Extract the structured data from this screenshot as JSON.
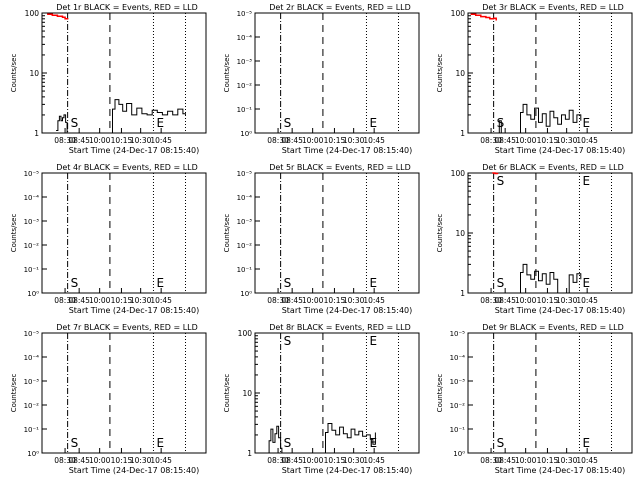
{
  "colors": {
    "events": "#000000",
    "lld": "#ff0000",
    "background": "#ffffff"
  },
  "shared": {
    "xlabel": "Start Time (24-Dec-17 08:15:40)",
    "xticks": [
      "08:30",
      "08:45",
      "10:00",
      "10:15",
      "10:30",
      "10:45"
    ],
    "marker_s": "S",
    "marker_e": "E",
    "ylabel": "Counts/sec"
  },
  "chart_data": [
    {
      "type": "line",
      "title": "Det 1r BLACK = Events, RED = LLD",
      "yscale": "log",
      "yticks": [
        "1",
        "10",
        "100"
      ],
      "series": [
        {
          "name": "Events",
          "points": [
            [
              0.55,
              1.1
            ],
            [
              0.62,
              1.6
            ],
            [
              0.68,
              1.9
            ],
            [
              0.74,
              1.6
            ],
            [
              0.8,
              1.8
            ],
            [
              0.86,
              2.0
            ],
            [
              0.92,
              1.5
            ],
            [
              0.98,
              1.0
            ],
            [
              1.0,
              1.0
            ],
            [
              2.7,
              1.0
            ],
            [
              2.75,
              2.5
            ],
            [
              2.85,
              3.6
            ],
            [
              3.0,
              3.0
            ],
            [
              3.15,
              2.3
            ],
            [
              3.3,
              3.1
            ],
            [
              3.5,
              2.0
            ],
            [
              3.7,
              2.6
            ],
            [
              3.9,
              2.1
            ],
            [
              4.1,
              2.0
            ],
            [
              4.3,
              2.4
            ],
            [
              4.5,
              2.2
            ],
            [
              4.7,
              2.0
            ],
            [
              4.9,
              2.3
            ],
            [
              5.1,
              2.0
            ],
            [
              5.3,
              2.5
            ],
            [
              5.5,
              2.1
            ],
            [
              5.6,
              2.0
            ]
          ]
        },
        {
          "name": "LLD",
          "points": [
            [
              0.2,
              95
            ],
            [
              0.4,
              92
            ],
            [
              0.6,
              88
            ],
            [
              0.8,
              85
            ],
            [
              0.9,
              80
            ],
            [
              1.0,
              78
            ]
          ]
        }
      ]
    },
    {
      "type": "line",
      "title": "Det 2r BLACK = Events, RED = LLD",
      "yscale": "log",
      "yticks": [
        "10⁰",
        "10⁻¹",
        "10⁻²",
        "10⁻³",
        "10⁻⁴",
        "10⁻⁵"
      ],
      "series": [
        {
          "name": "Events",
          "points": []
        }
      ]
    },
    {
      "type": "line",
      "title": "Det 3r BLACK = Events, RED = LLD",
      "yscale": "log",
      "yticks": [
        "1",
        "10",
        "100"
      ],
      "series": [
        {
          "name": "Events",
          "points": [
            [
              1.18,
              1.0
            ],
            [
              1.22,
              1.6
            ],
            [
              1.3,
              1.0
            ],
            [
              2.0,
              1.0
            ],
            [
              2.05,
              2.2
            ],
            [
              2.15,
              3.0
            ],
            [
              2.3,
              2.0
            ],
            [
              2.45,
              1.7
            ],
            [
              2.6,
              2.6
            ],
            [
              2.75,
              1.5
            ],
            [
              2.9,
              2.1
            ],
            [
              3.05,
              1.3
            ],
            [
              3.2,
              2.3
            ],
            [
              3.35,
              1.8
            ],
            [
              3.5,
              1.4
            ],
            [
              3.65,
              2.0
            ],
            [
              3.8,
              1.7
            ],
            [
              3.95,
              2.4
            ],
            [
              4.1,
              1.5
            ],
            [
              4.25,
              2.0
            ],
            [
              4.4,
              1.6
            ]
          ]
        },
        {
          "name": "LLD",
          "points": [
            [
              0.1,
              95
            ],
            [
              0.3,
              92
            ],
            [
              0.5,
              87
            ],
            [
              0.7,
              84
            ],
            [
              0.85,
              80
            ],
            [
              1.0,
              82
            ],
            [
              1.1,
              75
            ]
          ]
        }
      ]
    },
    {
      "type": "line",
      "title": "Det 4r BLACK = Events, RED = LLD",
      "yscale": "log",
      "yticks": [
        "10⁰",
        "10⁻¹",
        "10⁻²",
        "10⁻³",
        "10⁻⁴",
        "10⁻⁵"
      ],
      "series": [
        {
          "name": "Events",
          "points": []
        }
      ]
    },
    {
      "type": "line",
      "title": "Det 5r BLACK = Events, RED = LLD",
      "yscale": "log",
      "yticks": [
        "10⁰",
        "10⁻¹",
        "10⁻²",
        "10⁻³",
        "10⁻⁴",
        "10⁻⁵"
      ],
      "series": [
        {
          "name": "Events",
          "points": []
        }
      ]
    },
    {
      "type": "line",
      "title": "Det 6r BLACK = Events, RED = LLD",
      "yscale": "log",
      "yticks": [
        "1",
        "10",
        "100"
      ],
      "series": [
        {
          "name": "Events",
          "points": [
            [
              2.0,
              1.0
            ],
            [
              2.05,
              2.2
            ],
            [
              2.15,
              3.0
            ],
            [
              2.3,
              2.0
            ],
            [
              2.45,
              1.7
            ],
            [
              2.6,
              2.3
            ],
            [
              2.75,
              1.6
            ],
            [
              2.9,
              2.1
            ],
            [
              3.05,
              1.4
            ],
            [
              3.2,
              2.2
            ],
            [
              3.35,
              1.7
            ],
            [
              3.5,
              1.0
            ],
            [
              3.9,
              1.0
            ],
            [
              3.95,
              2.0
            ],
            [
              4.1,
              1.5
            ],
            [
              4.25,
              2.1
            ],
            [
              4.4,
              1.7
            ]
          ]
        },
        {
          "name": "LLD",
          "points": [
            [
              0.95,
              100
            ],
            [
              1.05,
              98
            ],
            [
              1.15,
              96
            ]
          ]
        }
      ]
    },
    {
      "type": "line",
      "title": "Det 7r BLACK = Events, RED = LLD",
      "yscale": "log",
      "yticks": [
        "10⁰",
        "10⁻¹",
        "10⁻²",
        "10⁻³",
        "10⁻⁴",
        "10⁻⁵"
      ],
      "series": [
        {
          "name": "Events",
          "points": []
        }
      ]
    },
    {
      "type": "line",
      "title": "Det 8r BLACK = Events, RED = LLD",
      "yscale": "log",
      "yticks": [
        "1",
        "10",
        "100"
      ],
      "series": [
        {
          "name": "Events",
          "points": [
            [
              0.5,
              1.0
            ],
            [
              0.55,
              1.6
            ],
            [
              0.62,
              2.5
            ],
            [
              0.7,
              1.5
            ],
            [
              0.78,
              2.1
            ],
            [
              0.85,
              2.8
            ],
            [
              0.92,
              1.8
            ],
            [
              1.0,
              1.2
            ],
            [
              1.05,
              1.0
            ],
            [
              2.7,
              1.0
            ],
            [
              2.75,
              2.2
            ],
            [
              2.85,
              3.1
            ],
            [
              3.0,
              2.4
            ],
            [
              3.15,
              2.0
            ],
            [
              3.3,
              2.7
            ],
            [
              3.45,
              2.1
            ],
            [
              3.6,
              1.8
            ],
            [
              3.75,
              2.5
            ],
            [
              3.9,
              2.0
            ],
            [
              4.05,
              2.3
            ],
            [
              4.2,
              1.9
            ],
            [
              4.35,
              2.0
            ],
            [
              4.5,
              1.7
            ],
            [
              4.6,
              1.4
            ],
            [
              4.7,
              2.2
            ]
          ]
        }
      ]
    },
    {
      "type": "line",
      "title": "Det 9r BLACK = Events, RED = LLD",
      "yscale": "log",
      "yticks": [
        "10⁰",
        "10⁻¹",
        "10⁻²",
        "10⁻³",
        "10⁻⁴",
        "10⁻⁵"
      ],
      "series": [
        {
          "name": "Events",
          "points": []
        }
      ]
    }
  ]
}
